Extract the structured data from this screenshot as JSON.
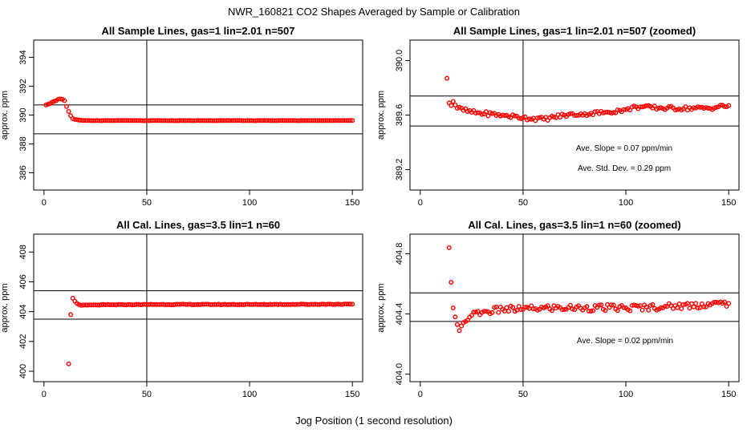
{
  "page": {
    "main_title": "NWR_160821  CO2 Shapes Averaged by Sample or Calibration",
    "shared_xlabel": "Jog Position (1 second resolution)",
    "point_color": "#ff0000",
    "line_color": "#000000"
  },
  "chart_data": [
    {
      "type": "scatter",
      "title": "All Sample Lines, gas=1 lin=2.01 n=507",
      "xlabel": "",
      "ylabel": "approx. ppm",
      "xlim": [
        -5,
        155
      ],
      "ylim": [
        384.8,
        395.2
      ],
      "xticks": [
        0,
        50,
        100,
        150
      ],
      "yticks": [
        386,
        388,
        390,
        392,
        394
      ],
      "hlines": [
        390.7,
        388.7
      ],
      "vlines": [
        50
      ],
      "annotations": [],
      "series": [
        {
          "name": "sample average",
          "x_start": 1,
          "x_end": 150,
          "values": [
            390.7,
            390.75,
            390.8,
            390.9,
            390.95,
            391.0,
            391.1,
            391.12,
            391.1,
            391.0,
            390.6,
            390.25,
            389.95,
            389.75,
            389.7,
            389.68,
            389.65,
            389.64,
            389.63,
            389.62
          ]
        },
        {
          "name": "sample tail",
          "x_start": 21,
          "x_end": 150,
          "flat_value": 389.62
        }
      ]
    },
    {
      "type": "scatter",
      "title": "All Sample Lines, gas=1 lin=2.01 n=507 (zoomed)",
      "xlabel": "",
      "ylabel": "approx. ppm",
      "xlim": [
        -5,
        155
      ],
      "ylim": [
        389.05,
        390.15
      ],
      "xticks": [
        0,
        50,
        100,
        150
      ],
      "yticks": [
        389.2,
        389.6,
        390.0
      ],
      "hlines": [
        389.74,
        389.52
      ],
      "vlines": [
        50
      ],
      "annotations": [
        "Ave. Slope =  0.07  ppm/min",
        "Ave. Std. Dev. =  0.29  ppm"
      ],
      "series": [
        {
          "name": "zoomed sample",
          "x_start": 13,
          "x_end": 150,
          "anchors": [
            [
              13,
              389.87
            ],
            [
              14,
              389.69
            ],
            [
              15,
              389.67
            ],
            [
              16,
              389.7
            ],
            [
              18,
              389.65
            ],
            [
              25,
              389.62
            ],
            [
              40,
              389.6
            ],
            [
              50,
              389.58
            ],
            [
              60,
              389.57
            ],
            [
              70,
              389.6
            ],
            [
              80,
              389.61
            ],
            [
              90,
              389.62
            ],
            [
              100,
              389.64
            ],
            [
              105,
              389.66
            ],
            [
              120,
              389.65
            ],
            [
              140,
              389.65
            ],
            [
              150,
              389.67
            ]
          ]
        }
      ]
    },
    {
      "type": "scatter",
      "title": "All Cal. Lines, gas=3.5 lin=1 n=60",
      "xlabel": "",
      "ylabel": "approx. ppm",
      "xlim": [
        -5,
        155
      ],
      "ylim": [
        399.3,
        409.2
      ],
      "xticks": [
        0,
        50,
        100,
        150
      ],
      "yticks": [
        400,
        402,
        404,
        406,
        408
      ],
      "hlines": [
        405.4,
        403.5
      ],
      "vlines": [
        50
      ],
      "annotations": [],
      "series": [
        {
          "name": "cal average",
          "x_start": 12,
          "x_end": 150,
          "anchors": [
            [
              12,
              400.5
            ],
            [
              13,
              403.8
            ],
            [
              14,
              404.9
            ],
            [
              15,
              404.7
            ],
            [
              16,
              404.55
            ],
            [
              18,
              404.42
            ],
            [
              25,
              404.45
            ],
            [
              50,
              404.48
            ],
            [
              100,
              404.48
            ],
            [
              150,
              404.5
            ]
          ]
        }
      ]
    },
    {
      "type": "scatter",
      "title": "All Cal. Lines, gas=3.5 lin=1 n=60 (zoomed)",
      "xlabel": "",
      "ylabel": "approx. ppm",
      "xlim": [
        -5,
        155
      ],
      "ylim": [
        403.95,
        404.93
      ],
      "xticks": [
        0,
        50,
        100,
        150
      ],
      "yticks": [
        404.0,
        404.4,
        404.8
      ],
      "hlines": [
        404.54,
        404.35
      ],
      "vlines": [
        50
      ],
      "annotations": [
        "Ave. Slope =  0.02  ppm/min"
      ],
      "series": [
        {
          "name": "zoomed cal",
          "x_start": 14,
          "x_end": 150,
          "anchors": [
            [
              14,
              404.84
            ],
            [
              15,
              404.61
            ],
            [
              16,
              404.44
            ],
            [
              17,
              404.38
            ],
            [
              18,
              404.33
            ],
            [
              19,
              404.29
            ],
            [
              20,
              404.32
            ],
            [
              22,
              404.35
            ],
            [
              25,
              404.39
            ],
            [
              30,
              404.41
            ],
            [
              40,
              404.43
            ],
            [
              50,
              404.43
            ],
            [
              60,
              404.44
            ],
            [
              80,
              404.44
            ],
            [
              100,
              404.44
            ],
            [
              120,
              404.45
            ],
            [
              150,
              404.47
            ]
          ]
        }
      ]
    }
  ]
}
